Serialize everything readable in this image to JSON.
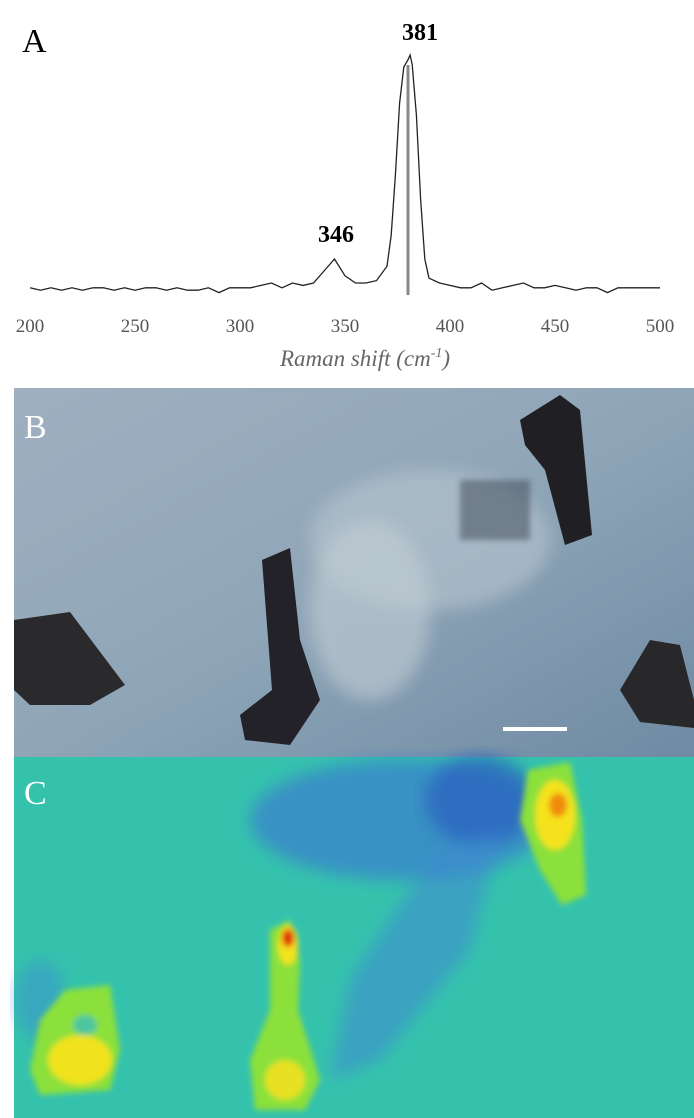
{
  "chart_data": {
    "type": "line",
    "panel_label": "A",
    "x_label_parts": [
      "Raman shift (cm",
      "-1",
      ")"
    ],
    "annotations": [
      "346",
      "381"
    ],
    "xlim": [
      200,
      500
    ],
    "xticks": [
      200,
      250,
      300,
      350,
      400,
      450,
      500
    ],
    "ylim": [
      0,
      100
    ],
    "color": "#222222",
    "marker_x": 380,
    "marker_color": "#888888",
    "x": [
      200,
      205,
      210,
      215,
      220,
      225,
      230,
      235,
      240,
      245,
      250,
      255,
      260,
      265,
      270,
      275,
      280,
      285,
      290,
      295,
      300,
      305,
      310,
      315,
      320,
      325,
      330,
      335,
      340,
      345,
      350,
      355,
      360,
      365,
      370,
      372,
      374,
      376,
      378,
      380,
      381,
      382,
      384,
      386,
      388,
      390,
      395,
      400,
      405,
      410,
      415,
      420,
      425,
      430,
      435,
      440,
      445,
      450,
      455,
      460,
      465,
      470,
      475,
      480,
      485,
      490,
      495,
      500
    ],
    "series": [
      {
        "values": [
          3,
          2,
          3,
          2,
          3,
          2,
          3,
          3,
          2,
          3,
          2,
          3,
          3,
          2,
          3,
          2,
          2,
          3,
          1,
          3,
          3,
          3,
          4,
          5,
          3,
          5,
          4,
          5,
          10,
          15,
          8,
          5,
          5,
          6,
          12,
          25,
          50,
          80,
          95,
          98,
          100,
          96,
          75,
          40,
          15,
          7,
          5,
          4,
          3,
          3,
          5,
          2,
          3,
          4,
          5,
          3,
          3,
          4,
          3,
          2,
          3,
          3,
          1,
          3,
          3,
          3,
          3,
          3
        ]
      }
    ]
  },
  "panels": [
    {
      "label": "B"
    },
    {
      "label": "C"
    }
  ]
}
